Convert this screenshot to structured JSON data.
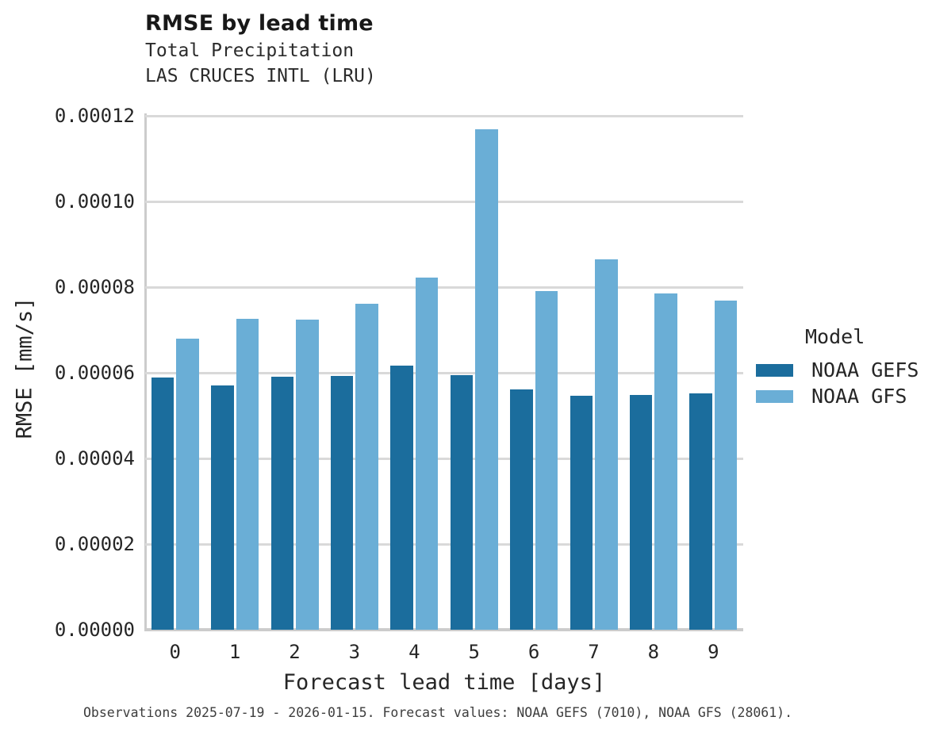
{
  "header": {
    "title": "RMSE by lead time",
    "subtitle_variable": "Total Precipitation",
    "subtitle_station": "LAS CRUCES INTL (LRU)"
  },
  "chart_data": {
    "type": "bar",
    "title": "RMSE by lead time",
    "subtitle": [
      "Total Precipitation",
      "LAS CRUCES INTL (LRU)"
    ],
    "categories": [
      "0",
      "1",
      "2",
      "3",
      "4",
      "5",
      "6",
      "7",
      "8",
      "9"
    ],
    "series": [
      {
        "name": "NOAA GEFS",
        "color": "#1b6d9d",
        "values": [
          5.89e-05,
          5.7e-05,
          5.91e-05,
          5.93e-05,
          6.17e-05,
          5.94e-05,
          5.61e-05,
          5.47e-05,
          5.49e-05,
          5.51e-05
        ]
      },
      {
        "name": "NOAA GFS",
        "color": "#6aaed6",
        "values": [
          6.8e-05,
          7.26e-05,
          7.24e-05,
          7.62e-05,
          8.22e-05,
          0.0001169,
          7.91e-05,
          8.65e-05,
          7.85e-05,
          7.69e-05
        ]
      }
    ],
    "xlabel": "Forecast lead time [days]",
    "ylabel": "RMSE [mm/s]",
    "ylim": [
      0,
      0.000122
    ],
    "yticks": [
      {
        "value": 0.0,
        "label": "0.00000"
      },
      {
        "value": 2e-05,
        "label": "0.00002"
      },
      {
        "value": 4e-05,
        "label": "0.00004"
      },
      {
        "value": 6e-05,
        "label": "0.00006"
      },
      {
        "value": 8e-05,
        "label": "0.00008"
      },
      {
        "value": 0.0001,
        "label": "0.00010"
      },
      {
        "value": 0.00012,
        "label": "0.00012"
      }
    ],
    "grid": true,
    "legend_position": "right"
  },
  "legend": {
    "title": "Model",
    "items": [
      {
        "label": "NOAA GEFS"
      },
      {
        "label": "NOAA GFS"
      }
    ]
  },
  "footer": {
    "caption": "Observations 2025-07-19 - 2026-01-15. Forecast values: NOAA GEFS (7010), NOAA GFS (28061)."
  },
  "colors": {
    "gefs_bar": "#1b6d9d",
    "gfs_bar": "#6aaed6",
    "gridline": "#d9d9d9",
    "axis": "#cccccc",
    "text": "#262626"
  }
}
